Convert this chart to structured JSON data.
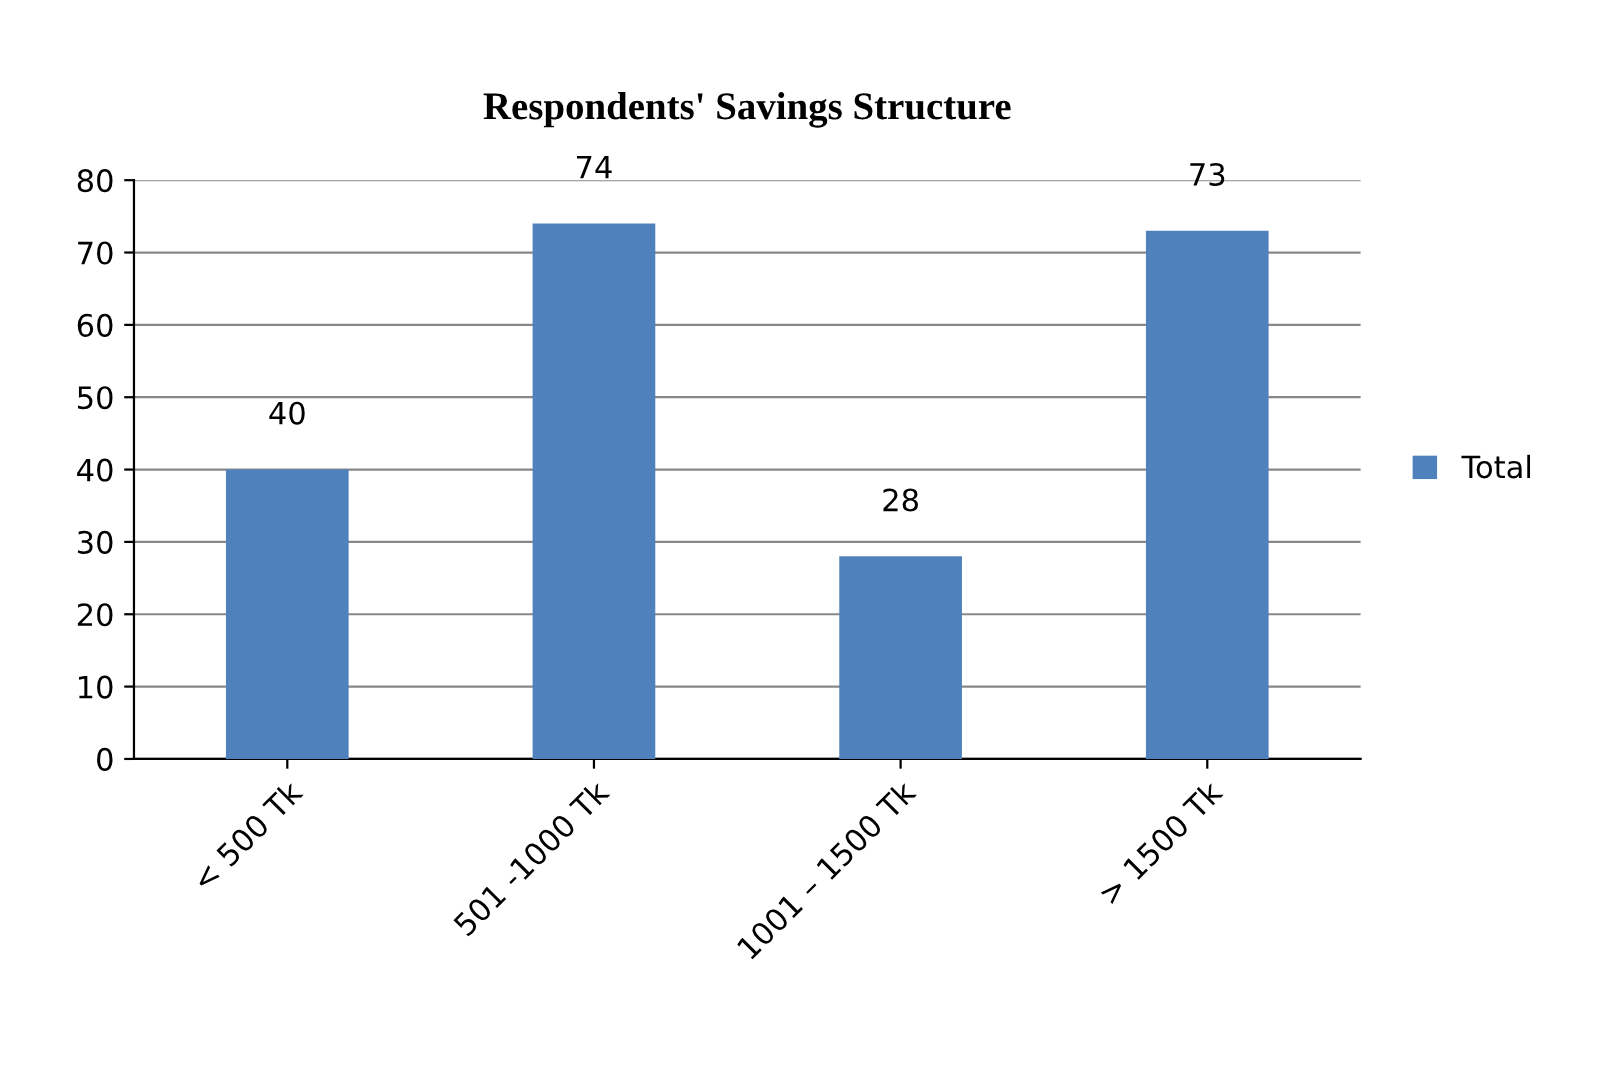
{
  "chart_data": {
    "type": "bar",
    "title": "Respondents' Savings Structure",
    "categories": [
      "< 500 Tk",
      "501 -1000 Tk",
      "1001 – 1500 Tk",
      "> 1500 Tk"
    ],
    "series": [
      {
        "name": "Total",
        "color": "#4f81bd",
        "values": [
          40,
          74,
          28,
          73
        ]
      }
    ],
    "ylim": [
      0,
      80
    ],
    "yticks": [
      0,
      10,
      20,
      30,
      40,
      50,
      60,
      70,
      80
    ],
    "grid": "y",
    "legend": "right",
    "data_labels": true
  }
}
